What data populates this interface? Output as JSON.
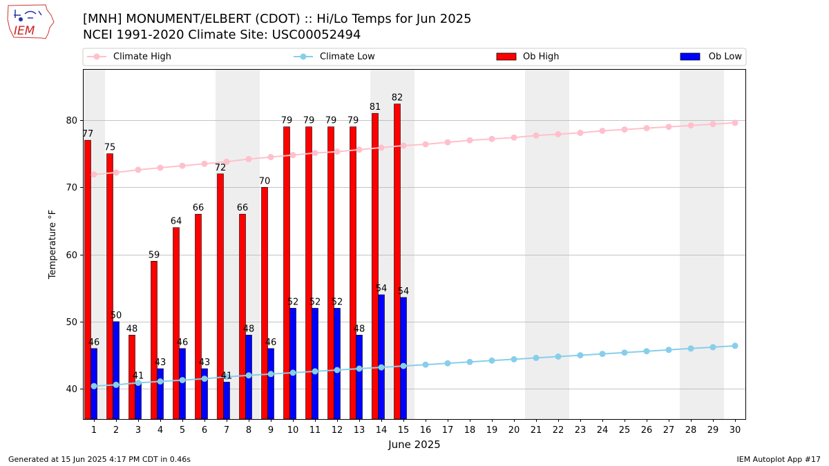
{
  "header": {
    "title_line1": "[MNH] MONUMENT/ELBERT (CDOT) :: Hi/Lo Temps for Jun 2025",
    "title_line2": "NCEI 1991-2020 Climate Site: USC00052494",
    "logo_text": "IEM"
  },
  "footer": {
    "generated": "Generated at 15 Jun 2025 4:17 PM CDT in 0.46s",
    "app": "IEM Autoplot App #17"
  },
  "colors": {
    "ob_high": "#ff0000",
    "ob_low": "#0000ff",
    "climate_high": "#ffc0cb",
    "climate_low": "#87ceeb",
    "weekend_shade": "#eeeeee",
    "grid": "#b0b0b0"
  },
  "chart_data": {
    "type": "bar",
    "title": "[MNH] MONUMENT/ELBERT (CDOT) :: Hi/Lo Temps for Jun 2025",
    "subtitle": "NCEI 1991-2020 Climate Site: USC00052494",
    "xlabel": "June 2025",
    "ylabel": "Temperature °F",
    "ylim": [
      35.5,
      87.6
    ],
    "yticks": [
      40,
      50,
      60,
      70,
      80
    ],
    "grid": "horizontal",
    "legend_placement": "top, above plot",
    "weekend_days": [
      1,
      7,
      8,
      14,
      15,
      21,
      22,
      28,
      29
    ],
    "days": [
      1,
      2,
      3,
      4,
      5,
      6,
      7,
      8,
      9,
      10,
      11,
      12,
      13,
      14,
      15,
      16,
      17,
      18,
      19,
      20,
      21,
      22,
      23,
      24,
      25,
      26,
      27,
      28,
      29,
      30
    ],
    "series": [
      {
        "name": "Climate High",
        "kind": "line",
        "values": [
          71.9,
          72.2,
          72.6,
          72.9,
          73.2,
          73.5,
          73.8,
          74.2,
          74.5,
          74.8,
          75.1,
          75.3,
          75.6,
          75.9,
          76.2,
          76.4,
          76.7,
          77.0,
          77.2,
          77.4,
          77.7,
          77.9,
          78.1,
          78.4,
          78.6,
          78.8,
          79.0,
          79.2,
          79.4,
          79.6
        ]
      },
      {
        "name": "Climate Low",
        "kind": "line",
        "values": [
          40.4,
          40.6,
          40.9,
          41.1,
          41.3,
          41.5,
          41.8,
          42.0,
          42.2,
          42.4,
          42.6,
          42.8,
          43.0,
          43.2,
          43.4,
          43.6,
          43.8,
          44.0,
          44.2,
          44.4,
          44.6,
          44.8,
          45.0,
          45.2,
          45.4,
          45.6,
          45.8,
          46.0,
          46.2,
          46.4
        ]
      },
      {
        "name": "Ob High",
        "kind": "bar",
        "values": [
          77,
          75,
          48,
          59,
          64,
          66,
          72,
          66,
          70,
          79,
          79,
          79,
          79,
          81,
          82.4
        ],
        "labels": [
          "77",
          "75",
          "48",
          "59",
          "64",
          "66",
          "72",
          "66",
          "70",
          "79",
          "79",
          "79",
          "79",
          "81",
          "82"
        ]
      },
      {
        "name": "Ob Low",
        "kind": "bar",
        "values": [
          46,
          50,
          41,
          43,
          46,
          43,
          41,
          48,
          46,
          52,
          52,
          52,
          48,
          54,
          53.6
        ],
        "labels": [
          "46",
          "50",
          "41",
          "43",
          "46",
          "43",
          "41",
          "48",
          "46",
          "52",
          "52",
          "52",
          "48",
          "54",
          "54"
        ]
      }
    ]
  }
}
